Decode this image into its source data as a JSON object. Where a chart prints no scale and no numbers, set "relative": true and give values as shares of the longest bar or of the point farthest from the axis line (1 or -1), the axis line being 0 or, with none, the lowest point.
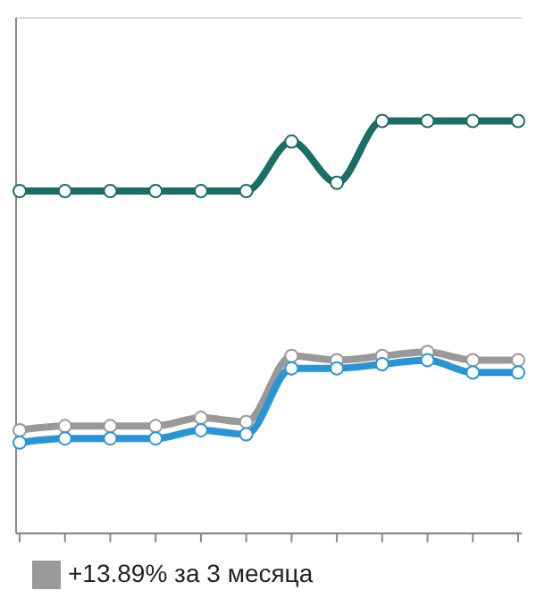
{
  "chart_data": {
    "type": "line",
    "relative": true,
    "categories": [
      null,
      null,
      null,
      null,
      null,
      null,
      null,
      null,
      null,
      null,
      null,
      null
    ],
    "series": [
      {
        "color": "#1a6e65",
        "values": [
          0.83,
          0.83,
          0.83,
          0.83,
          0.83,
          0.83,
          0.95,
          0.85,
          1,
          1,
          1,
          1
        ]
      },
      {
        "name": "+13.89% за 3 месяца",
        "color": "#999999",
        "values": [
          0.25,
          0.26,
          0.26,
          0.26,
          0.28,
          0.27,
          0.43,
          0.42,
          0.43,
          0.44,
          0.42,
          0.42
        ]
      },
      {
        "color": "#2a95d5",
        "values": [
          0.22,
          0.23,
          0.23,
          0.23,
          0.25,
          0.24,
          0.4,
          0.4,
          0.41,
          0.42,
          0.39,
          0.39
        ]
      }
    ],
    "grid": "y",
    "legend": "bottom",
    "marker": "circle",
    "line_style": "solid"
  }
}
